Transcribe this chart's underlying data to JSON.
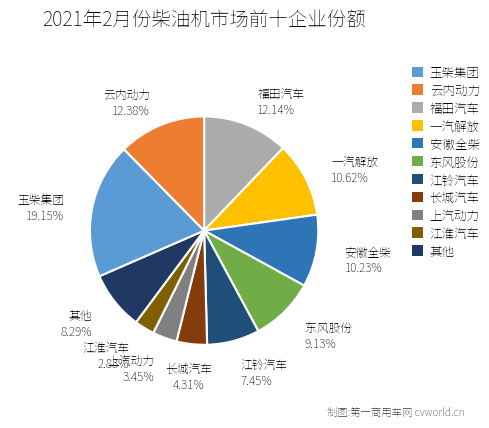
{
  "title": "2021年2月份柴油机市场前十企业份额",
  "labels": [
    "福田汽车",
    "一汽解放",
    "安徽全柴",
    "东风股份",
    "江铃汽车",
    "长城汽车",
    "上汽动力",
    "江淮汽车",
    "其他",
    "玉柴集团",
    "云内动力"
  ],
  "values": [
    12.14,
    10.62,
    10.23,
    9.13,
    7.45,
    4.31,
    3.45,
    2.83,
    8.29,
    19.15,
    12.38
  ],
  "colors": [
    "#ABABAB",
    "#FFC000",
    "#2E75B6",
    "#70AD47",
    "#1F4E79",
    "#843C0C",
    "#808080",
    "#7F6000",
    "#1F3864",
    "#5B9BD5",
    "#ED7D31"
  ],
  "legend_labels": [
    "玉柴集团",
    "云内动力",
    "福田汽车",
    "一汽解放",
    "安徽全柴",
    "东风股份",
    "江铃汽车",
    "长城汽车",
    "上汽动力",
    "江淮汽车",
    "其他"
  ],
  "legend_colors": [
    "#5B9BD5",
    "#ED7D31",
    "#ABABAB",
    "#FFC000",
    "#2E75B6",
    "#70AD47",
    "#1F4E79",
    "#843C0C",
    "#808080",
    "#7F6000",
    "#1F3864"
  ],
  "footer": "制图:第一商用车网 cvworld.cn",
  "title_fontsize": 14,
  "label_fontsize": 8.5,
  "legend_fontsize": 9
}
